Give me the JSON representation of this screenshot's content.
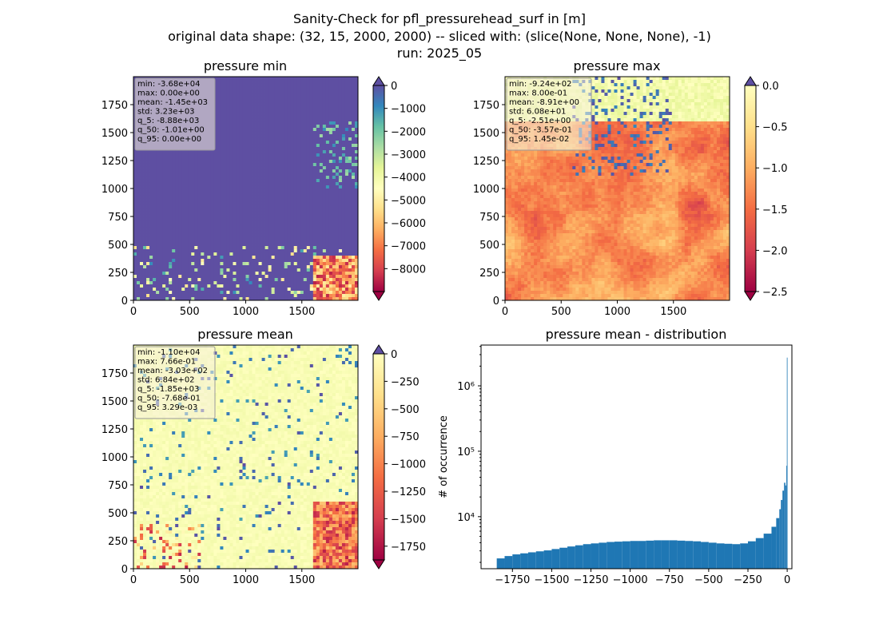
{
  "figure": {
    "title_lines": [
      "Sanity-Check for pfl_pressurehead_surf in [m]",
      "original data shape: (32, 15, 2000, 2000) -- sliced with: (slice(None, None, None), -1)",
      "run: 2025_05"
    ]
  },
  "chart_data": [
    {
      "type": "heatmap",
      "title": "pressure min",
      "x_ticks": [
        "0",
        "500",
        "1000",
        "1500"
      ],
      "y_ticks": [
        "0",
        "250",
        "500",
        "750",
        "1000",
        "1250",
        "1500",
        "1750"
      ],
      "xlim": [
        0,
        2000
      ],
      "ylim": [
        0,
        2000
      ],
      "colormap": "Spectral",
      "colorbar": {
        "range": [
          -9000,
          0
        ],
        "extend": "both",
        "ticks": [
          "0",
          "−1000",
          "−2000",
          "−3000",
          "−4000",
          "−5000",
          "−6000",
          "−7000",
          "−8000"
        ]
      },
      "stats": [
        "min: -3.68e+04",
        "max: 0.00e+00",
        "mean: -1.45e+03",
        "std: 3.23e+03",
        "q_5: -8.88e+03",
        "q_50: -1.01e+00",
        "q_95: 0.00e+00"
      ]
    },
    {
      "type": "heatmap",
      "title": "pressure max",
      "x_ticks": [
        "0",
        "500",
        "1000",
        "1500"
      ],
      "y_ticks": [
        "0",
        "250",
        "500",
        "750",
        "1000",
        "1250",
        "1500",
        "1750"
      ],
      "xlim": [
        0,
        2000
      ],
      "ylim": [
        0,
        2000
      ],
      "colormap": "Spectral",
      "colorbar": {
        "range": [
          -2.5,
          0.0
        ],
        "extend": "both",
        "ticks": [
          "0.0",
          "−0.5",
          "−1.0",
          "−1.5",
          "−2.0",
          "−2.5"
        ]
      },
      "stats": [
        "min: -9.24e+02",
        "max: 8.00e-01",
        "mean: -8.91e+00",
        "std: 6.08e+01",
        "q_5: -2.51e+00",
        "q_50: -3.57e-01",
        "q_95: 1.45e-02"
      ]
    },
    {
      "type": "heatmap",
      "title": "pressure mean",
      "x_ticks": [
        "0",
        "500",
        "1000",
        "1500"
      ],
      "y_ticks": [
        "0",
        "250",
        "500",
        "750",
        "1000",
        "1250",
        "1500",
        "1750"
      ],
      "xlim": [
        0,
        2000
      ],
      "ylim": [
        0,
        2000
      ],
      "colormap": "Spectral",
      "colorbar": {
        "range": [
          -1875,
          0
        ],
        "extend": "both",
        "ticks": [
          "0",
          "−250",
          "−500",
          "−750",
          "−1000",
          "−1250",
          "−1500",
          "−1750"
        ]
      },
      "stats": [
        "min: -1.10e+04",
        "max: 7.66e-01",
        "mean: -3.03e+02",
        "std: 6.84e+02",
        "q_5: -1.85e+03",
        "q_50: -7.68e-01",
        "q_95: 3.29e-03"
      ]
    },
    {
      "type": "bar",
      "title": "pressure mean - distribution",
      "ylabel": "# of occurrence",
      "yscale": "log",
      "x_ticks": [
        "−1750",
        "−1500",
        "−1250",
        "−1000",
        "−750",
        "−500",
        "−250",
        "0"
      ],
      "y_ticks": [
        "10⁴",
        "10⁵",
        "10⁶"
      ],
      "xlim": [
        -1950,
        30
      ],
      "color": "#1f77b4",
      "bins": [
        [
          -1850,
          2300
        ],
        [
          -1800,
          2500
        ],
        [
          -1750,
          2650
        ],
        [
          -1700,
          2750
        ],
        [
          -1650,
          2850
        ],
        [
          -1600,
          2950
        ],
        [
          -1550,
          3050
        ],
        [
          -1500,
          3200
        ],
        [
          -1450,
          3350
        ],
        [
          -1400,
          3500
        ],
        [
          -1350,
          3650
        ],
        [
          -1300,
          3800
        ],
        [
          -1250,
          3900
        ],
        [
          -1200,
          4000
        ],
        [
          -1150,
          4100
        ],
        [
          -1100,
          4150
        ],
        [
          -1050,
          4200
        ],
        [
          -1000,
          4250
        ],
        [
          -950,
          4250
        ],
        [
          -900,
          4300
        ],
        [
          -850,
          4350
        ],
        [
          -800,
          4350
        ],
        [
          -750,
          4350
        ],
        [
          -700,
          4300
        ],
        [
          -650,
          4250
        ],
        [
          -600,
          4200
        ],
        [
          -550,
          4100
        ],
        [
          -500,
          4000
        ],
        [
          -450,
          3900
        ],
        [
          -400,
          3850
        ],
        [
          -350,
          3800
        ],
        [
          -300,
          3900
        ],
        [
          -250,
          4200
        ],
        [
          -200,
          4700
        ],
        [
          -150,
          5500
        ],
        [
          -100,
          7000
        ],
        [
          -70,
          9500
        ],
        [
          -50,
          13000
        ],
        [
          -40,
          18000
        ],
        [
          -30,
          25000
        ],
        [
          -20,
          33000
        ],
        [
          -12,
          30000
        ],
        [
          -6,
          60000
        ],
        [
          -2,
          2700000
        ]
      ]
    }
  ]
}
